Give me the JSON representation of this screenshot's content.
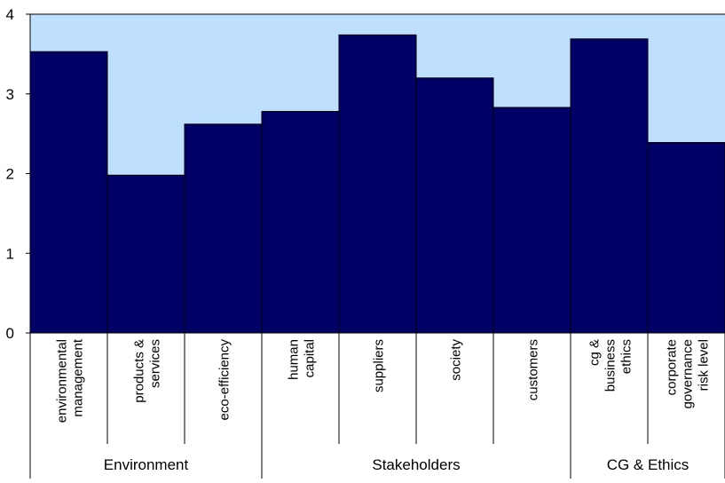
{
  "chart_data": {
    "type": "bar",
    "title": "",
    "xlabel": "",
    "ylabel": "",
    "ylim": [
      0,
      4
    ],
    "yticks": [
      "0",
      "1",
      "2",
      "3",
      "4"
    ],
    "grid": false,
    "legend": "none",
    "categories": [
      [
        "environmental",
        "management"
      ],
      [
        "products &",
        "services"
      ],
      [
        "eco-efficiency"
      ],
      [
        "human",
        "capital"
      ],
      [
        "suppliers"
      ],
      [
        "society"
      ],
      [
        "customers"
      ],
      [
        "cg &",
        "business",
        "ethics"
      ],
      [
        "corporate",
        "governance",
        "risk level"
      ]
    ],
    "groups": [
      {
        "label": "Environment",
        "span": 3
      },
      {
        "label": "Stakeholders",
        "span": 4
      },
      {
        "label": "CG & Ethics",
        "span": 2
      }
    ],
    "values": [
      3.53,
      1.98,
      2.62,
      2.78,
      3.74,
      3.2,
      2.83,
      3.69,
      2.39
    ]
  },
  "colors": {
    "bar_fill": "#000066",
    "bar_stroke": "#000000",
    "plot_background": "#bfdfff",
    "axis": "#000000",
    "page_background": "#ffffff"
  }
}
